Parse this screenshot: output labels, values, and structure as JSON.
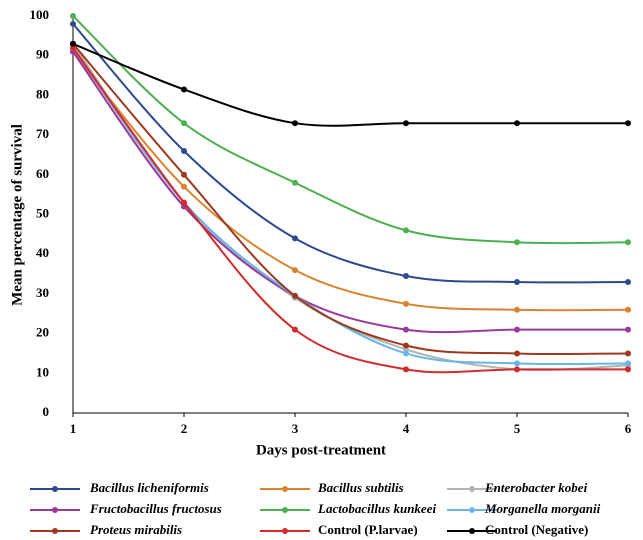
{
  "chart_data": {
    "type": "line",
    "xlabel": "Days post-treatment",
    "ylabel": "Mean percentage of survival",
    "x": [
      1,
      2,
      3,
      4,
      5,
      6
    ],
    "xlim": [
      1,
      6
    ],
    "xticks": [
      1,
      2,
      3,
      4,
      5,
      6
    ],
    "ylim": [
      0,
      100
    ],
    "yticks": [
      0,
      10,
      20,
      30,
      40,
      50,
      60,
      70,
      80,
      90,
      100
    ],
    "grid": false,
    "legend": "bottom",
    "smooth": true,
    "series": [
      {
        "name": "Bacillus licheniformis",
        "color": "#2e4a8e",
        "values": [
          98,
          66,
          44,
          34.5,
          33,
          33
        ]
      },
      {
        "name": "Bacillus subtilis",
        "color": "#d9832e",
        "values": [
          91,
          57,
          36,
          27.5,
          26,
          26
        ]
      },
      {
        "name": "Enterobacter kobei",
        "color": "#b3b3b3",
        "values": [
          93,
          53,
          29,
          16,
          11,
          12
        ]
      },
      {
        "name": "Fructobacillus fructosus",
        "color": "#9a3a9a",
        "values": [
          91,
          52,
          29.5,
          21,
          21,
          21
        ]
      },
      {
        "name": "Lactobacillus kunkeei",
        "color": "#4caf50",
        "values": [
          100,
          73,
          58,
          46,
          43,
          43
        ]
      },
      {
        "name": "Morganella morganii",
        "color": "#6cb6e6",
        "values": [
          92,
          53,
          29.5,
          15,
          12.5,
          12.5
        ]
      },
      {
        "name": "Proteus mirabilis",
        "color": "#9b3a1e",
        "values": [
          93,
          60,
          29.5,
          17,
          15,
          15
        ]
      },
      {
        "name": "Control (P.larvae)",
        "color": "#d32a2a",
        "values": [
          92,
          53,
          21,
          11,
          11,
          11
        ]
      },
      {
        "name": "Control (Negative)",
        "color": "#000000",
        "values": [
          93,
          81.5,
          73,
          73,
          73,
          73
        ]
      }
    ]
  }
}
